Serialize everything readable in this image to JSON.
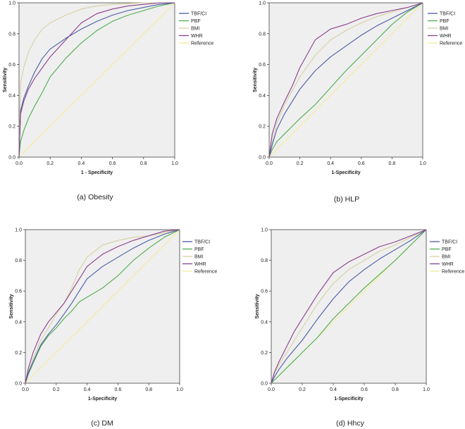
{
  "figure": {
    "legend": {
      "colors": {
        "TBF/CI": "#4a5ca8",
        "PBF": "#4fae4f",
        "BMI": "#d7d0a4",
        "WHR": "#8a3f8c",
        "Reference": "#f4eb9c"
      },
      "plot_background": "#efefef"
    }
  },
  "chart_data": [
    {
      "type": "line",
      "caption": "(a)  Obesity",
      "xlabel": "1 - Specificity",
      "ylabel": "Sensitivity",
      "xlim": [
        0,
        1
      ],
      "ylim": [
        0,
        1
      ],
      "x_ticks": [
        "0.0",
        "0.2",
        "0.4",
        "0.6",
        "0.8",
        "1.0"
      ],
      "y_ticks": [
        "0.0",
        "0.2",
        "0.4",
        "0.6",
        "0.8",
        "1.0"
      ],
      "grid": false,
      "legend_position": "right",
      "series": [
        {
          "name": "TBF/CI",
          "x": [
            0,
            0.01,
            0.03,
            0.06,
            0.1,
            0.15,
            0.2,
            0.3,
            0.4,
            0.5,
            0.6,
            0.7,
            0.8,
            0.9,
            1.0
          ],
          "y": [
            0,
            0.3,
            0.38,
            0.46,
            0.55,
            0.64,
            0.7,
            0.77,
            0.83,
            0.88,
            0.92,
            0.95,
            0.97,
            0.99,
            1.0
          ]
        },
        {
          "name": "PBF",
          "x": [
            0,
            0.01,
            0.03,
            0.06,
            0.1,
            0.15,
            0.2,
            0.3,
            0.4,
            0.5,
            0.6,
            0.7,
            0.8,
            0.9,
            1.0
          ],
          "y": [
            0,
            0.1,
            0.17,
            0.25,
            0.33,
            0.42,
            0.52,
            0.64,
            0.74,
            0.82,
            0.88,
            0.92,
            0.95,
            0.98,
            1.0
          ]
        },
        {
          "name": "BMI",
          "x": [
            0,
            0.01,
            0.03,
            0.06,
            0.1,
            0.15,
            0.2,
            0.3,
            0.4,
            0.5,
            0.6,
            0.7,
            0.8,
            0.9,
            1.0
          ],
          "y": [
            0,
            0.48,
            0.58,
            0.68,
            0.76,
            0.83,
            0.87,
            0.92,
            0.96,
            0.98,
            0.99,
            0.995,
            1.0,
            1.0,
            1.0
          ]
        },
        {
          "name": "WHR",
          "x": [
            0,
            0.01,
            0.03,
            0.06,
            0.1,
            0.15,
            0.2,
            0.3,
            0.4,
            0.5,
            0.6,
            0.7,
            0.8,
            0.9,
            1.0
          ],
          "y": [
            0,
            0.28,
            0.36,
            0.44,
            0.51,
            0.58,
            0.65,
            0.76,
            0.87,
            0.93,
            0.96,
            0.98,
            0.99,
            1.0,
            1.0
          ]
        },
        {
          "name": "Reference",
          "x": [
            0,
            1
          ],
          "y": [
            0,
            1
          ]
        }
      ]
    },
    {
      "type": "line",
      "caption": "(b)  HLP",
      "xlabel": "1-Specificity",
      "ylabel": "Sensitivity",
      "xlim": [
        0,
        1
      ],
      "ylim": [
        0,
        1
      ],
      "x_ticks": [
        "0.0",
        "0.2",
        "0.4",
        "0.6",
        "0.8",
        "1.0"
      ],
      "y_ticks": [
        "0.0",
        "0.2",
        "0.4",
        "0.6",
        "0.8",
        "1.0"
      ],
      "grid": false,
      "legend_position": "right",
      "series": [
        {
          "name": "TBF/CI",
          "x": [
            0,
            0.02,
            0.05,
            0.1,
            0.15,
            0.2,
            0.3,
            0.4,
            0.5,
            0.6,
            0.7,
            0.8,
            0.9,
            1.0
          ],
          "y": [
            0,
            0.08,
            0.18,
            0.28,
            0.36,
            0.44,
            0.56,
            0.65,
            0.72,
            0.79,
            0.85,
            0.9,
            0.95,
            1.0
          ]
        },
        {
          "name": "PBF",
          "x": [
            0,
            0.02,
            0.05,
            0.1,
            0.15,
            0.2,
            0.3,
            0.4,
            0.5,
            0.6,
            0.7,
            0.8,
            0.9,
            1.0
          ],
          "y": [
            0,
            0.05,
            0.1,
            0.15,
            0.2,
            0.25,
            0.34,
            0.45,
            0.56,
            0.66,
            0.76,
            0.86,
            0.94,
            1.0
          ]
        },
        {
          "name": "BMI",
          "x": [
            0,
            0.02,
            0.05,
            0.1,
            0.15,
            0.2,
            0.3,
            0.4,
            0.5,
            0.6,
            0.7,
            0.8,
            0.9,
            1.0
          ],
          "y": [
            0,
            0.1,
            0.22,
            0.34,
            0.43,
            0.52,
            0.66,
            0.76,
            0.82,
            0.87,
            0.91,
            0.94,
            0.97,
            1.0
          ]
        },
        {
          "name": "WHR",
          "x": [
            0,
            0.02,
            0.05,
            0.1,
            0.15,
            0.2,
            0.3,
            0.4,
            0.5,
            0.6,
            0.7,
            0.8,
            0.9,
            1.0
          ],
          "y": [
            0,
            0.15,
            0.25,
            0.36,
            0.46,
            0.58,
            0.76,
            0.83,
            0.86,
            0.9,
            0.93,
            0.95,
            0.97,
            1.0
          ]
        },
        {
          "name": "Reference",
          "x": [
            0,
            1
          ],
          "y": [
            0,
            1
          ]
        }
      ]
    },
    {
      "type": "line",
      "caption": "(c)  DM",
      "xlabel": "1-Specificity",
      "ylabel": "Sensitivity",
      "xlim": [
        0,
        1
      ],
      "ylim": [
        0,
        1
      ],
      "x_ticks": [
        "0.0",
        "0.2",
        "0.4",
        "0.6",
        "0.8",
        "1.0"
      ],
      "y_ticks": [
        "0.0",
        "0.2",
        "0.4",
        "0.6",
        "0.8",
        "1.0"
      ],
      "grid": false,
      "legend_position": "right",
      "series": [
        {
          "name": "TBF/CI",
          "x": [
            0,
            0.02,
            0.05,
            0.1,
            0.15,
            0.2,
            0.25,
            0.3,
            0.35,
            0.4,
            0.5,
            0.6,
            0.7,
            0.8,
            0.9,
            1.0
          ],
          "y": [
            0,
            0.07,
            0.14,
            0.25,
            0.32,
            0.38,
            0.45,
            0.52,
            0.6,
            0.68,
            0.76,
            0.82,
            0.88,
            0.93,
            0.97,
            1.0
          ]
        },
        {
          "name": "PBF",
          "x": [
            0,
            0.02,
            0.05,
            0.1,
            0.15,
            0.2,
            0.25,
            0.3,
            0.35,
            0.4,
            0.5,
            0.6,
            0.7,
            0.8,
            0.9,
            1.0
          ],
          "y": [
            0,
            0.06,
            0.13,
            0.24,
            0.31,
            0.36,
            0.42,
            0.47,
            0.53,
            0.56,
            0.62,
            0.7,
            0.8,
            0.88,
            0.95,
            1.0
          ]
        },
        {
          "name": "BMI",
          "x": [
            0,
            0.02,
            0.05,
            0.1,
            0.15,
            0.2,
            0.25,
            0.3,
            0.35,
            0.4,
            0.5,
            0.6,
            0.7,
            0.8,
            0.9,
            1.0
          ],
          "y": [
            0,
            0.08,
            0.16,
            0.28,
            0.36,
            0.45,
            0.52,
            0.62,
            0.74,
            0.82,
            0.9,
            0.93,
            0.95,
            0.96,
            0.98,
            1.0
          ]
        },
        {
          "name": "WHR",
          "x": [
            0,
            0.02,
            0.05,
            0.1,
            0.15,
            0.2,
            0.25,
            0.3,
            0.35,
            0.4,
            0.5,
            0.6,
            0.7,
            0.8,
            0.9,
            1.0
          ],
          "y": [
            0,
            0.1,
            0.2,
            0.32,
            0.4,
            0.46,
            0.52,
            0.6,
            0.68,
            0.76,
            0.84,
            0.89,
            0.93,
            0.96,
            0.99,
            1.0
          ]
        },
        {
          "name": "Reference",
          "x": [
            0,
            1
          ],
          "y": [
            0,
            1
          ]
        }
      ]
    },
    {
      "type": "line",
      "caption": "(d)  Hhcy",
      "xlabel": "1-Specificity",
      "ylabel": "Sensitivity",
      "xlim": [
        0,
        1
      ],
      "ylim": [
        0,
        1
      ],
      "x_ticks": [
        "0.0",
        "0.2",
        "0.4",
        "0.6",
        "0.8",
        "1.0"
      ],
      "y_ticks": [
        "0.0",
        "0.2",
        "0.4",
        "0.6",
        "0.8",
        "1.0"
      ],
      "grid": false,
      "legend_position": "right",
      "series": [
        {
          "name": "TBF/CI",
          "x": [
            0,
            0.02,
            0.05,
            0.1,
            0.15,
            0.2,
            0.3,
            0.4,
            0.5,
            0.6,
            0.7,
            0.8,
            0.9,
            1.0
          ],
          "y": [
            0,
            0.04,
            0.09,
            0.16,
            0.22,
            0.28,
            0.42,
            0.55,
            0.66,
            0.74,
            0.81,
            0.87,
            0.93,
            1.0
          ]
        },
        {
          "name": "PBF",
          "x": [
            0,
            0.02,
            0.05,
            0.1,
            0.15,
            0.2,
            0.3,
            0.4,
            0.5,
            0.6,
            0.7,
            0.8,
            0.9,
            1.0
          ],
          "y": [
            0,
            0.02,
            0.05,
            0.1,
            0.15,
            0.2,
            0.3,
            0.42,
            0.52,
            0.62,
            0.71,
            0.8,
            0.9,
            1.0
          ]
        },
        {
          "name": "BMI",
          "x": [
            0,
            0.02,
            0.05,
            0.1,
            0.15,
            0.2,
            0.3,
            0.4,
            0.5,
            0.6,
            0.7,
            0.8,
            0.9,
            1.0
          ],
          "y": [
            0,
            0.06,
            0.12,
            0.2,
            0.28,
            0.36,
            0.52,
            0.65,
            0.74,
            0.8,
            0.86,
            0.9,
            0.95,
            1.0
          ]
        },
        {
          "name": "WHR",
          "x": [
            0,
            0.02,
            0.05,
            0.1,
            0.15,
            0.2,
            0.3,
            0.4,
            0.5,
            0.6,
            0.7,
            0.8,
            0.9,
            1.0
          ],
          "y": [
            0,
            0.07,
            0.14,
            0.24,
            0.34,
            0.42,
            0.58,
            0.72,
            0.79,
            0.84,
            0.89,
            0.92,
            0.96,
            1.0
          ]
        },
        {
          "name": "Reference",
          "x": [
            0,
            1
          ],
          "y": [
            0,
            1
          ]
        }
      ]
    }
  ]
}
